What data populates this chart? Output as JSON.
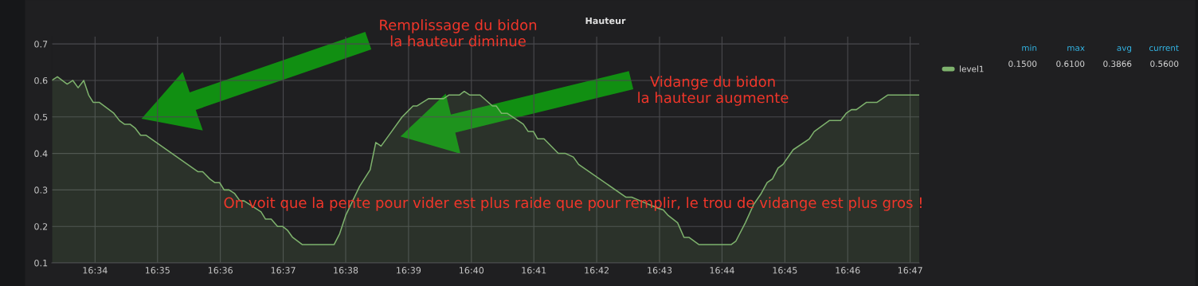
{
  "chart_data": {
    "type": "area",
    "title": "Hauteur",
    "x": [
      16.5552,
      16.5567,
      16.5593,
      16.5608,
      16.5622,
      16.5637,
      16.565,
      16.5662,
      16.5678,
      16.5717,
      16.5732,
      16.5745,
      16.576,
      16.5773,
      16.5788,
      16.5802,
      16.594,
      16.5953,
      16.5972,
      16.5985,
      16.5998,
      16.601,
      16.6023,
      16.6038,
      16.6052,
      16.6063,
      16.6108,
      16.612,
      16.6135,
      16.6152,
      16.6165,
      16.6178,
      16.6192,
      16.6218,
      16.6302,
      16.6317,
      16.6333,
      16.637,
      16.6398,
      16.6413,
      16.6427,
      16.6455,
      16.6483,
      16.6512,
      16.6522,
      16.6553,
      16.6593,
      16.6607,
      16.6635,
      16.6648,
      16.6663,
      16.669,
      16.6723,
      16.6733,
      16.6747,
      16.6762,
      16.6805,
      16.6818,
      16.6832,
      16.6843,
      16.686,
      16.6898,
      16.6917,
      16.6938,
      16.6952,
      16.7078,
      16.7093,
      16.7105,
      16.7162,
      16.7177,
      16.719,
      16.7215,
      16.7232,
      16.7245,
      16.7272,
      16.7357,
      16.737,
      16.7395,
      16.7417,
      16.7437,
      16.7453,
      16.7467,
      16.7482,
      16.7495,
      16.7522,
      16.7565,
      16.7578,
      16.7618,
      16.7648,
      16.7663,
      16.7677,
      16.769,
      16.7717,
      16.7745,
      16.7773,
      16.7857
    ],
    "series": [
      {
        "name": "level1",
        "color": "#7eb26d",
        "values": [
          0.6,
          0.61,
          0.59,
          0.6,
          0.58,
          0.6,
          0.56,
          0.54,
          0.54,
          0.51,
          0.49,
          0.48,
          0.48,
          0.47,
          0.45,
          0.45,
          0.35,
          0.35,
          0.33,
          0.32,
          0.32,
          0.3,
          0.3,
          0.29,
          0.27,
          0.27,
          0.24,
          0.22,
          0.22,
          0.2,
          0.2,
          0.19,
          0.17,
          0.15,
          0.15,
          0.18,
          0.23,
          0.31,
          0.355,
          0.43,
          0.42,
          0.46,
          0.5,
          0.53,
          0.53,
          0.55,
          0.55,
          0.56,
          0.56,
          0.57,
          0.56,
          0.56,
          0.53,
          0.53,
          0.51,
          0.51,
          0.48,
          0.46,
          0.46,
          0.44,
          0.44,
          0.4,
          0.4,
          0.39,
          0.37,
          0.28,
          0.28,
          0.275,
          0.25,
          0.245,
          0.23,
          0.21,
          0.17,
          0.17,
          0.15,
          0.15,
          0.16,
          0.21,
          0.26,
          0.29,
          0.32,
          0.33,
          0.36,
          0.37,
          0.41,
          0.44,
          0.46,
          0.49,
          0.49,
          0.51,
          0.52,
          0.52,
          0.54,
          0.54,
          0.56,
          0.56
        ]
      }
    ],
    "xlim": [
      16.5552,
      16.7857
    ],
    "ylim": [
      0.1,
      0.72
    ],
    "xticks": [
      {
        "value": 16.5667,
        "label": "16:34"
      },
      {
        "value": 16.5833,
        "label": "16:35"
      },
      {
        "value": 16.6,
        "label": "16:36"
      },
      {
        "value": 16.6167,
        "label": "16:37"
      },
      {
        "value": 16.6333,
        "label": "16:38"
      },
      {
        "value": 16.65,
        "label": "16:39"
      },
      {
        "value": 16.6667,
        "label": "16:40"
      },
      {
        "value": 16.6833,
        "label": "16:41"
      },
      {
        "value": 16.7,
        "label": "16:42"
      },
      {
        "value": 16.7167,
        "label": "16:43"
      },
      {
        "value": 16.7333,
        "label": "16:44"
      },
      {
        "value": 16.75,
        "label": "16:45"
      },
      {
        "value": 16.7667,
        "label": "16:46"
      },
      {
        "value": 16.7833,
        "label": "16:47"
      }
    ],
    "yticks": [
      0.1,
      0.2,
      0.3,
      0.4,
      0.5,
      0.6,
      0.7
    ],
    "grid": true,
    "legend": "top right",
    "annotations": [
      "Remplissage du bidon\nla hauteur diminue",
      "Vidange du bidon\nla hauteur augmente",
      "On voit que la pente pour vider est plus raide que pour remplir, le trou de vidange est plus gros !",
      "min",
      "max",
      "avg",
      "current",
      "0.1500",
      "0.6100",
      "0.3866",
      "0.5600"
    ]
  }
}
